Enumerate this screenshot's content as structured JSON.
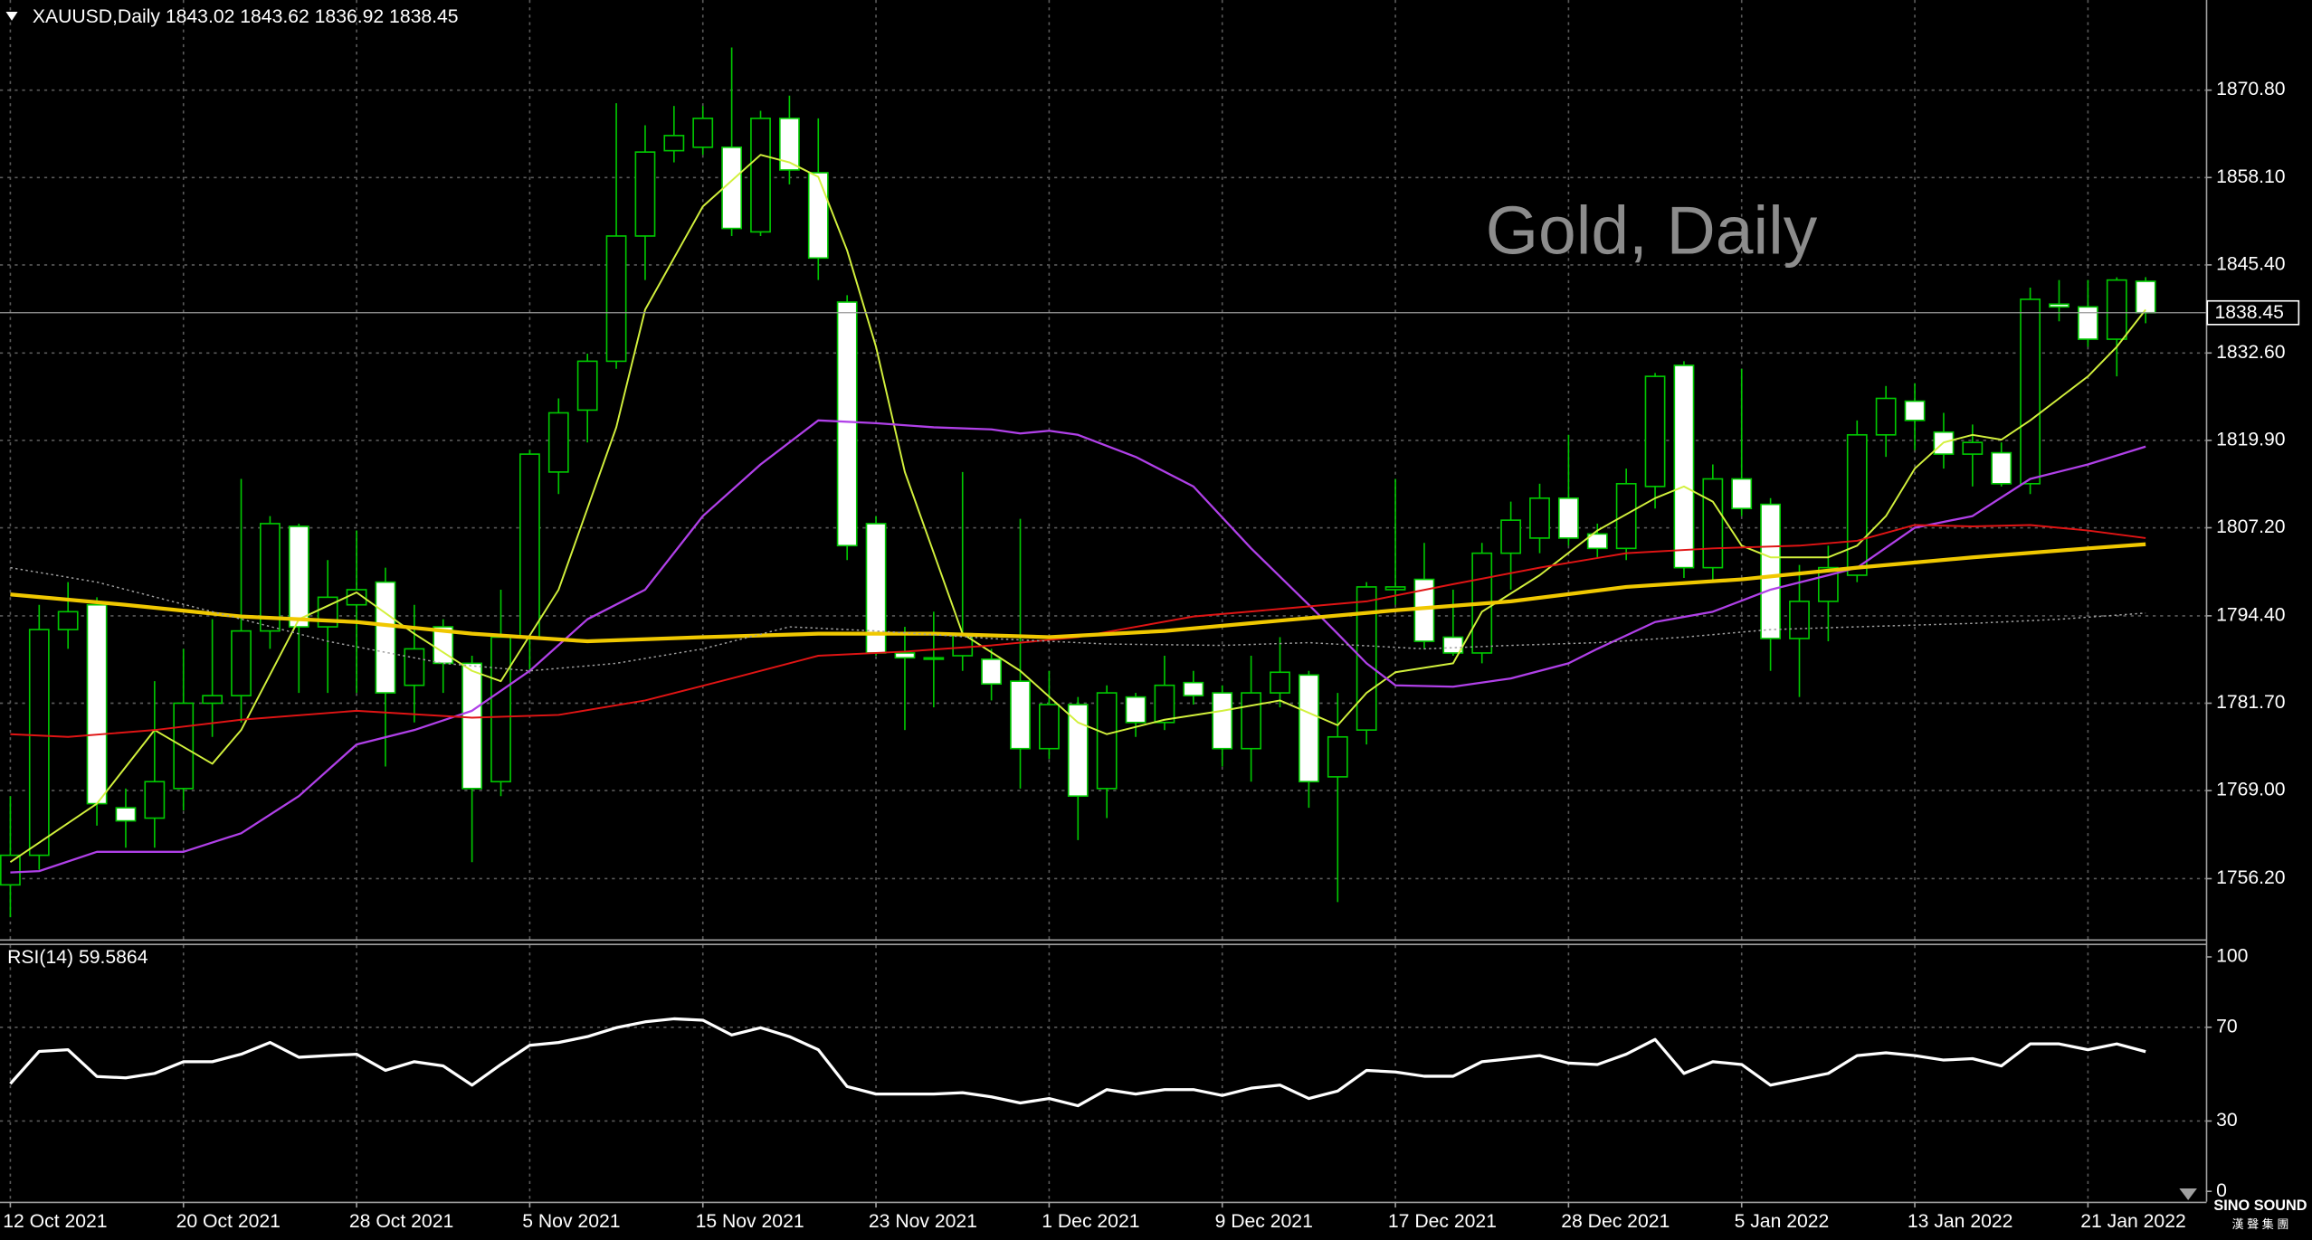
{
  "chart_data": {
    "type": "candlestick",
    "title": "XAUUSD,Daily  1843.02 1843.62 1836.92 1838.45",
    "watermark": "Gold, Daily",
    "categories": [
      "12 Oct 2021",
      null,
      null,
      null,
      null,
      null,
      "20 Oct 2021",
      null,
      null,
      null,
      null,
      null,
      "28 Oct 2021",
      null,
      null,
      null,
      null,
      null,
      "5 Nov 2021",
      null,
      null,
      null,
      null,
      null,
      "15 Nov 2021",
      null,
      null,
      null,
      null,
      null,
      "23 Nov 2021",
      null,
      null,
      null,
      null,
      null,
      "1 Dec 2021",
      null,
      null,
      null,
      null,
      null,
      "9 Dec 2021",
      null,
      null,
      null,
      null,
      null,
      "17 Dec 2021",
      null,
      null,
      null,
      null,
      null,
      "28 Dec 2021",
      null,
      null,
      null,
      null,
      null,
      "5 Jan 2022",
      null,
      null,
      null,
      null,
      null,
      "13 Jan 2022",
      null,
      null,
      null,
      null,
      null,
      "21 Jan 2022",
      null,
      null
    ],
    "open": [
      1755.3,
      1759.6,
      1792.4,
      1796.0,
      1766.5,
      1765.0,
      1769.3,
      1781.7,
      1782.8,
      1792.2,
      1807.4,
      1792.8,
      1796.0,
      1799.3,
      1784.3,
      1792.8,
      1787.5,
      1770.3,
      1791.3,
      1815.3,
      1824.3,
      1831.4,
      1849.6,
      1862.0,
      1862.5,
      1862.5,
      1850.2,
      1866.7,
      1858.8,
      1840.0,
      1807.8,
      1789.0,
      1788.3,
      1788.6,
      1788.1,
      1784.9,
      1775.1,
      1781.5,
      1769.3,
      1782.6,
      1778.9,
      1784.7,
      1783.2,
      1775.1,
      1783.2,
      1785.8,
      1771.0,
      1777.8,
      1798.2,
      1799.7,
      1791.3,
      1789.0,
      1803.5,
      1805.7,
      1811.5,
      1806.3,
      1804.2,
      1813.2,
      1830.8,
      1801.4,
      1814.3,
      1810.6,
      1791.1,
      1796.5,
      1800.3,
      1820.7,
      1825.6,
      1821.1,
      1817.9,
      1818.1,
      1813.6,
      1839.7,
      1839.3,
      1834.6,
      1843.02
    ],
    "high": [
      1768.2,
      1796.0,
      1799.3,
      1797.1,
      1769.3,
      1784.9,
      1789.6,
      1793.9,
      1814.3,
      1808.9,
      1807.8,
      1802.5,
      1806.8,
      1801.4,
      1796.0,
      1793.9,
      1788.6,
      1798.2,
      1818.5,
      1826.0,
      1832.5,
      1868.9,
      1865.7,
      1868.5,
      1868.5,
      1877.0,
      1867.8,
      1870.0,
      1866.7,
      1841.0,
      1808.9,
      1792.8,
      1795.0,
      1815.3,
      1789.6,
      1808.5,
      1786.4,
      1782.6,
      1784.3,
      1783.2,
      1788.6,
      1786.4,
      1784.3,
      1788.6,
      1791.3,
      1786.4,
      1783.2,
      1799.3,
      1814.3,
      1805.0,
      1798.2,
      1805.0,
      1811.0,
      1813.6,
      1820.7,
      1807.8,
      1815.8,
      1829.7,
      1831.4,
      1816.4,
      1830.3,
      1811.5,
      1801.8,
      1804.6,
      1822.8,
      1827.8,
      1828.2,
      1823.9,
      1822.2,
      1819.6,
      1842.1,
      1843.2,
      1843.2,
      1843.6,
      1843.62
    ],
    "low": [
      1750.6,
      1757.5,
      1789.6,
      1763.9,
      1760.7,
      1760.7,
      1766.1,
      1776.8,
      1778.9,
      1789.6,
      1783.2,
      1783.2,
      1783.2,
      1772.5,
      1778.9,
      1783.2,
      1758.6,
      1768.2,
      1786.4,
      1812.1,
      1819.6,
      1830.3,
      1843.2,
      1860.3,
      1861.4,
      1849.6,
      1849.6,
      1857.1,
      1843.2,
      1802.5,
      1788.6,
      1777.8,
      1781.1,
      1786.4,
      1782.1,
      1769.3,
      1773.6,
      1761.8,
      1765.0,
      1776.8,
      1777.8,
      1781.5,
      1772.5,
      1770.3,
      1781.1,
      1766.5,
      1752.8,
      1775.7,
      1796.0,
      1789.6,
      1788.6,
      1787.5,
      1798.2,
      1803.5,
      1804.6,
      1802.9,
      1802.5,
      1810.0,
      1799.9,
      1799.3,
      1808.9,
      1786.4,
      1782.6,
      1790.7,
      1799.3,
      1817.5,
      1818.5,
      1815.8,
      1813.2,
      1813.2,
      1812.1,
      1837.2,
      1833.5,
      1829.2,
      1836.92
    ],
    "close": [
      1759.6,
      1792.4,
      1795.0,
      1767.1,
      1764.6,
      1770.3,
      1781.7,
      1782.8,
      1792.2,
      1807.8,
      1792.8,
      1797.1,
      1798.2,
      1783.2,
      1789.6,
      1787.5,
      1769.3,
      1791.3,
      1817.9,
      1823.9,
      1831.4,
      1849.6,
      1861.8,
      1864.2,
      1866.7,
      1850.7,
      1866.7,
      1859.2,
      1846.4,
      1804.6,
      1789.0,
      1788.3,
      1788.1,
      1791.8,
      1784.5,
      1775.1,
      1781.5,
      1768.2,
      1783.2,
      1778.9,
      1784.3,
      1782.8,
      1775.1,
      1783.2,
      1786.2,
      1770.3,
      1776.8,
      1798.6,
      1798.6,
      1790.7,
      1789.0,
      1803.5,
      1808.3,
      1811.5,
      1805.7,
      1804.2,
      1813.6,
      1829.2,
      1801.4,
      1814.3,
      1810.0,
      1791.1,
      1796.5,
      1801.4,
      1820.7,
      1826.0,
      1822.8,
      1817.9,
      1819.6,
      1813.6,
      1840.4,
      1839.3,
      1834.6,
      1843.2,
      1838.45
    ],
    "up_color": "#000000",
    "down_color": "#ffffff",
    "wick_color": "#00c800",
    "ylim": [
      1747.4,
      1883.9
    ],
    "yticks": [
      {
        "value": 1756.2,
        "label": "1756.20"
      },
      {
        "value": 1769.0,
        "label": "1769.00"
      },
      {
        "value": 1781.7,
        "label": "1781.70"
      },
      {
        "value": 1794.4,
        "label": "1794.40"
      },
      {
        "value": 1807.2,
        "label": "1807.20"
      },
      {
        "value": 1819.9,
        "label": "1819.90"
      },
      {
        "value": 1832.6,
        "label": "1832.60"
      },
      {
        "value": 1845.4,
        "label": "1845.40"
      },
      {
        "value": 1858.1,
        "label": "1858.10"
      },
      {
        "value": 1870.8,
        "label": "1870.80"
      }
    ],
    "grid": true,
    "overlays": [
      {
        "color": "#d2f03c",
        "x": [
          0,
          3,
          5,
          7,
          8,
          10,
          12,
          14,
          16,
          17,
          19,
          21,
          22,
          24,
          26,
          27,
          28,
          29,
          30,
          31,
          33,
          35,
          37,
          38,
          40,
          42,
          44,
          46,
          47,
          48,
          50,
          51,
          53,
          55,
          57,
          58,
          59,
          60,
          61,
          62,
          63,
          64,
          65,
          66,
          67,
          68,
          69,
          70,
          71,
          72,
          73,
          74
        ],
        "values": [
          1758.6,
          1767.1,
          1777.8,
          1772.9,
          1777.8,
          1793.9,
          1797.8,
          1791.8,
          1786.4,
          1784.9,
          1798.2,
          1821.8,
          1838.9,
          1853.9,
          1861.4,
          1860.3,
          1858.2,
          1847.5,
          1833.5,
          1815.3,
          1791.8,
          1786.4,
          1778.9,
          1777.2,
          1779.3,
          1780.6,
          1782.1,
          1778.5,
          1783.2,
          1786.2,
          1787.5,
          1795.0,
          1800.3,
          1806.8,
          1811.5,
          1813.2,
          1811.0,
          1804.6,
          1802.9,
          1802.9,
          1802.9,
          1804.6,
          1808.9,
          1815.8,
          1819.6,
          1820.7,
          1820.0,
          1822.8,
          1826.0,
          1829.2,
          1833.5,
          1838.9
        ]
      },
      {
        "color": "#b040e8",
        "x": [
          0,
          1,
          3,
          6,
          8,
          10,
          12,
          14,
          16,
          18,
          20,
          22,
          24,
          26,
          28,
          30,
          32,
          34,
          35,
          36,
          37,
          39,
          41,
          43,
          45,
          46,
          47,
          48,
          50,
          52,
          54,
          55,
          57,
          59,
          61,
          63,
          64,
          66,
          68,
          70,
          72,
          74
        ],
        "values": [
          1757.1,
          1757.3,
          1760.1,
          1760.1,
          1762.8,
          1768.2,
          1775.7,
          1777.8,
          1780.6,
          1786.4,
          1793.9,
          1798.2,
          1808.9,
          1816.4,
          1822.8,
          1822.4,
          1821.8,
          1821.5,
          1820.9,
          1821.3,
          1820.7,
          1817.5,
          1813.2,
          1804.2,
          1796.0,
          1791.8,
          1787.5,
          1784.3,
          1784.1,
          1785.3,
          1787.5,
          1789.6,
          1793.5,
          1795.0,
          1798.2,
          1800.3,
          1801.4,
          1807.2,
          1808.9,
          1814.3,
          1816.4,
          1819.0
        ]
      },
      {
        "color": "#e01414",
        "x": [
          0,
          2,
          5,
          8,
          12,
          16,
          19,
          22,
          25,
          28,
          31,
          34,
          37,
          41,
          44,
          47,
          50,
          53,
          56,
          59,
          62,
          64,
          66,
          68,
          70,
          72,
          74
        ],
        "values": [
          1777.2,
          1776.8,
          1777.8,
          1779.3,
          1780.6,
          1779.6,
          1780.0,
          1782.1,
          1785.3,
          1788.6,
          1789.2,
          1790.1,
          1791.3,
          1794.3,
          1795.4,
          1796.5,
          1799.0,
          1801.4,
          1803.5,
          1804.2,
          1804.6,
          1805.3,
          1807.6,
          1807.4,
          1807.6,
          1806.8,
          1805.7
        ]
      },
      {
        "color": "#f0c800",
        "x": [
          0,
          4,
          8,
          12,
          16,
          20,
          24,
          28,
          32,
          36,
          40,
          44,
          48,
          52,
          56,
          60,
          64,
          68,
          72,
          74
        ],
        "values": [
          1797.5,
          1796.0,
          1794.3,
          1793.5,
          1791.8,
          1790.7,
          1791.3,
          1791.8,
          1791.8,
          1791.3,
          1792.2,
          1793.7,
          1795.2,
          1796.5,
          1798.6,
          1799.7,
          1801.4,
          1802.9,
          1804.2,
          1804.8
        ]
      },
      {
        "color": "#a0a0a0",
        "x": [
          0,
          3,
          7,
          11,
          15,
          18,
          21,
          24,
          27,
          30,
          34,
          38,
          42,
          45,
          49,
          52,
          55,
          58,
          61,
          64,
          68,
          71,
          74
        ],
        "values": [
          1801.4,
          1799.3,
          1795.0,
          1790.7,
          1787.5,
          1786.4,
          1787.5,
          1789.6,
          1792.8,
          1792.2,
          1791.1,
          1790.3,
          1790.1,
          1790.5,
          1789.6,
          1790.1,
          1790.5,
          1791.3,
          1792.4,
          1792.8,
          1793.3,
          1793.9,
          1794.8
        ]
      }
    ],
    "rsi": {
      "title": "RSI(14) 59.5864",
      "color": "#ffffff",
      "values": [
        45.9,
        59.7,
        60.4,
        49.0,
        48.4,
        50.3,
        55.3,
        55.3,
        58.5,
        63.5,
        57.2,
        57.9,
        58.5,
        51.6,
        55.3,
        53.5,
        45.3,
        54.1,
        62.3,
        63.5,
        66.0,
        69.8,
        72.3,
        73.6,
        73.0,
        66.7,
        69.8,
        66.0,
        60.4,
        44.7,
        41.5,
        41.5,
        41.5,
        42.1,
        40.3,
        37.7,
        39.6,
        36.5,
        43.4,
        41.5,
        43.4,
        43.4,
        40.9,
        44.0,
        45.3,
        39.6,
        42.8,
        51.6,
        50.9,
        49.1,
        49.1,
        55.3,
        56.6,
        57.9,
        54.7,
        54.1,
        58.5,
        64.8,
        50.3,
        55.3,
        54.1,
        45.3,
        47.8,
        50.3,
        57.9,
        59.1,
        57.9,
        56.0,
        56.6,
        53.5,
        62.9,
        62.9,
        60.4,
        62.9,
        59.5864
      ],
      "ylim": [
        0,
        100
      ],
      "yticks": [
        0,
        30,
        70,
        100
      ]
    }
  },
  "logo": {
    "name": "SINO SOUND",
    "subtitle": "漢 聲 集 團"
  }
}
